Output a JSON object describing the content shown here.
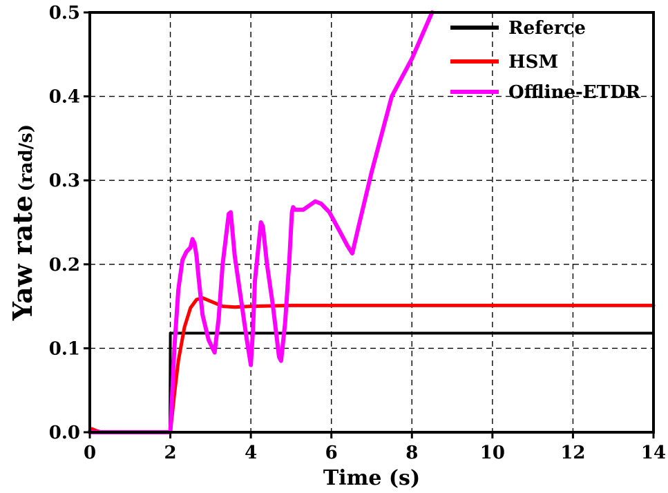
{
  "chart_data": {
    "type": "line",
    "xlabel": "Time (s)",
    "ylabel_main": "Yaw rate",
    "ylabel_unit": "(rad/s)",
    "xlim": [
      0,
      14
    ],
    "ylim": [
      0,
      0.5
    ],
    "xticks": [
      0,
      2,
      4,
      6,
      8,
      10,
      12,
      14
    ],
    "yticks": [
      0.0,
      0.1,
      0.2,
      0.3,
      0.4,
      0.5
    ],
    "xtick_labels": [
      "0",
      "2",
      "4",
      "6",
      "8",
      "10",
      "12",
      "14"
    ],
    "ytick_labels": [
      "0.0",
      "0.1",
      "0.2",
      "0.3",
      "0.4",
      "0.5"
    ],
    "grid": true,
    "legend_position": "top-right",
    "series": [
      {
        "name": "Referce",
        "color": "#000000",
        "x": [
          0,
          1.99,
          2.0,
          14
        ],
        "y": [
          0,
          0,
          0.118,
          0.118
        ]
      },
      {
        "name": "HSM",
        "color": "#ff0000",
        "x": [
          0,
          0.05,
          0.15,
          0.3,
          2.0,
          2.1,
          2.2,
          2.35,
          2.5,
          2.65,
          2.8,
          3.0,
          3.3,
          3.6,
          4.0,
          5.0,
          6.0,
          8.0,
          10.0,
          12.0,
          14.0
        ],
        "y": [
          0.002,
          0.004,
          0.002,
          0.0,
          0.0,
          0.045,
          0.085,
          0.125,
          0.148,
          0.158,
          0.16,
          0.156,
          0.15,
          0.149,
          0.15,
          0.151,
          0.151,
          0.151,
          0.151,
          0.151,
          0.151
        ]
      },
      {
        "name": "Offline-ETDR",
        "color": "#ff00ff",
        "x": [
          0,
          2.0,
          2.1,
          2.2,
          2.3,
          2.4,
          2.5,
          2.55,
          2.6,
          2.65,
          2.7,
          2.8,
          2.95,
          3.1,
          3.2,
          3.3,
          3.45,
          3.5,
          3.6,
          3.75,
          3.9,
          4.0,
          4.05,
          4.1,
          4.25,
          4.3,
          4.4,
          4.55,
          4.7,
          4.75,
          4.85,
          4.95,
          5.02,
          5.05,
          5.1,
          5.2,
          5.3,
          5.45,
          5.6,
          5.75,
          5.95,
          6.2,
          6.4,
          6.52,
          6.7,
          7.0,
          7.5,
          8.0,
          8.5
        ],
        "y": [
          0,
          0,
          0.1,
          0.17,
          0.205,
          0.215,
          0.22,
          0.23,
          0.225,
          0.21,
          0.185,
          0.14,
          0.11,
          0.095,
          0.135,
          0.2,
          0.26,
          0.262,
          0.21,
          0.16,
          0.11,
          0.08,
          0.12,
          0.18,
          0.25,
          0.245,
          0.2,
          0.15,
          0.09,
          0.085,
          0.13,
          0.2,
          0.262,
          0.268,
          0.265,
          0.265,
          0.265,
          0.27,
          0.275,
          0.272,
          0.262,
          0.24,
          0.222,
          0.213,
          0.25,
          0.31,
          0.4,
          0.445,
          0.5
        ]
      }
    ]
  }
}
